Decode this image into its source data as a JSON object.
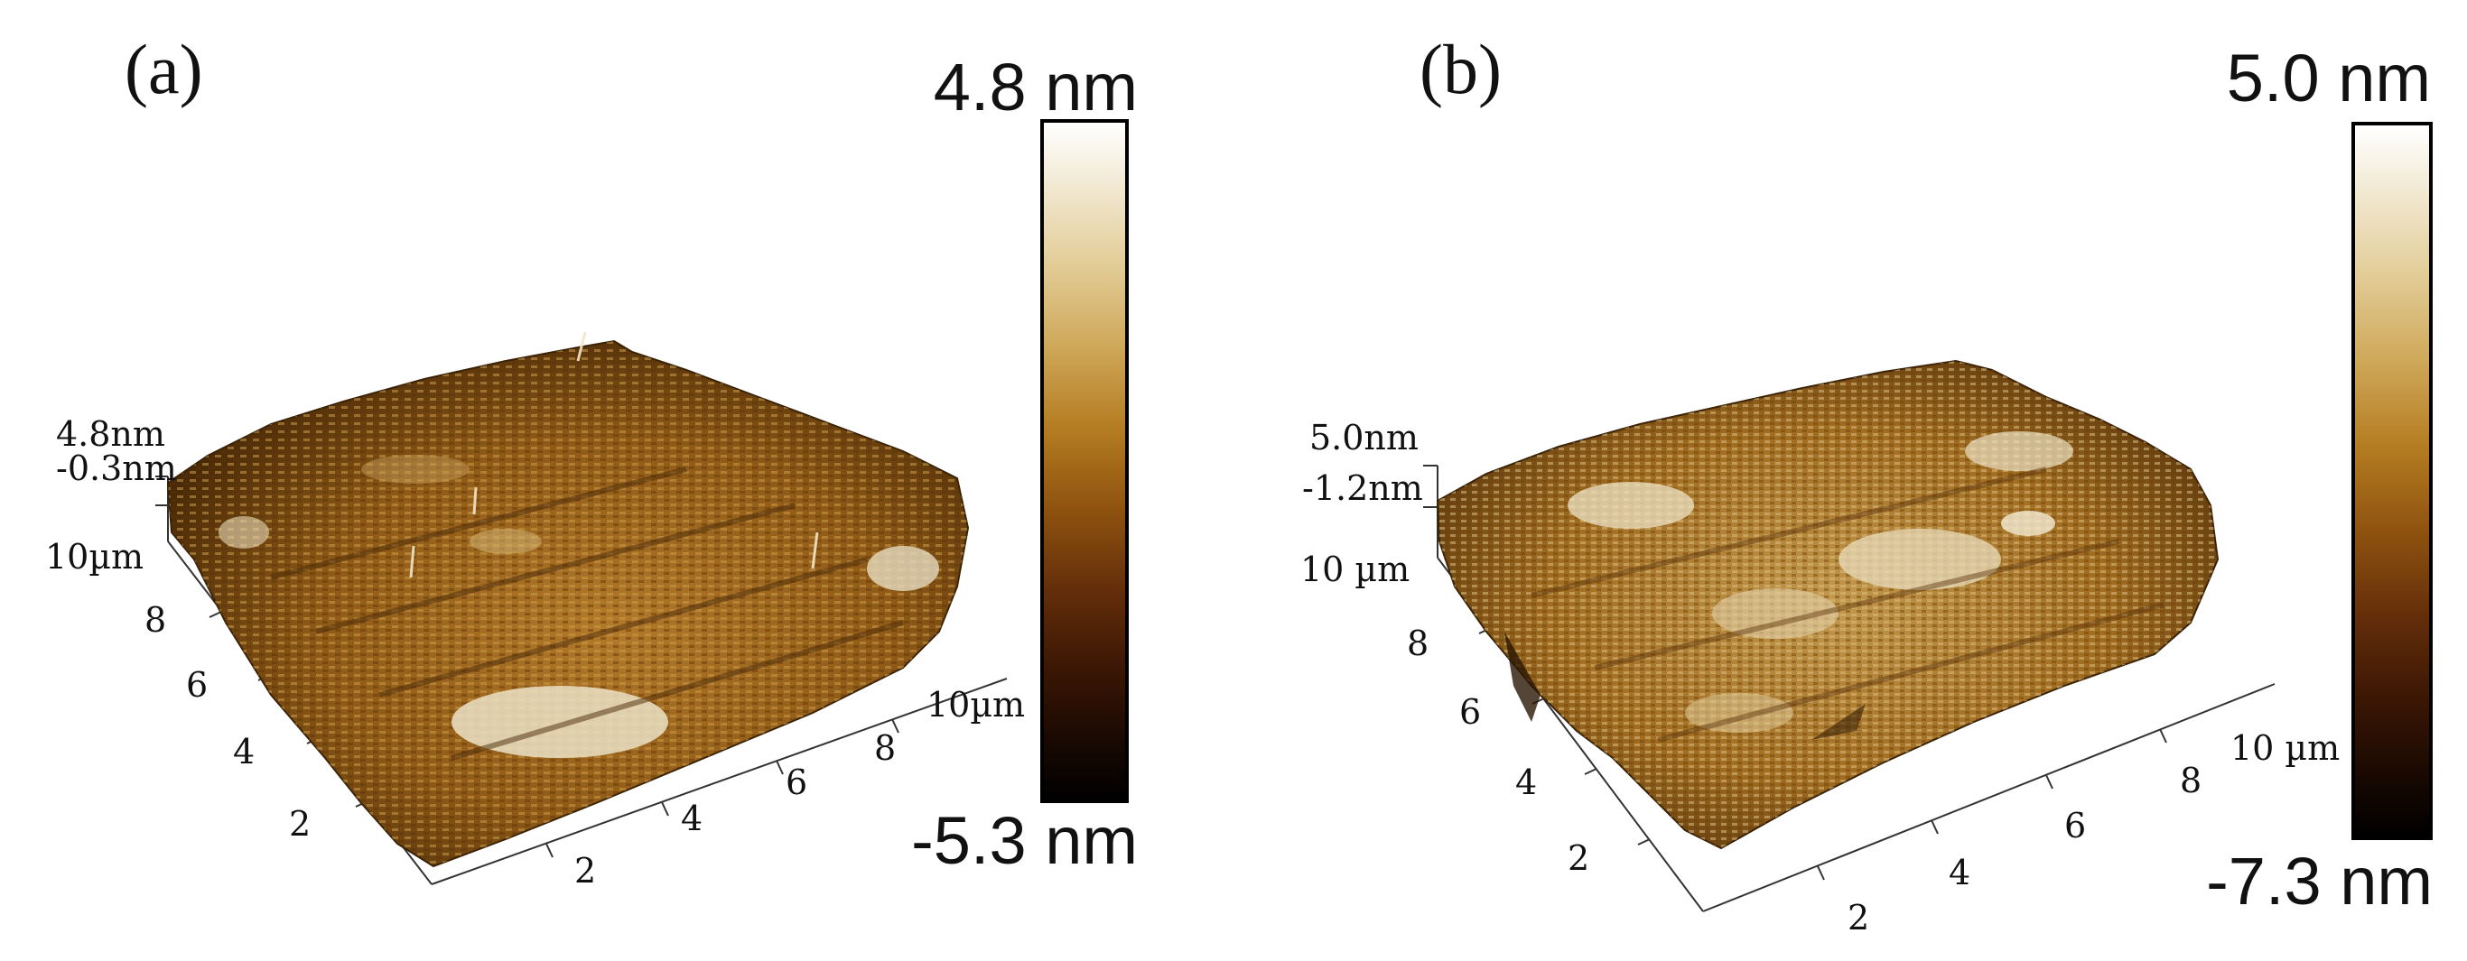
{
  "colors": {
    "surface_dark": "#3a2206",
    "surface_mid": "#a36a1a",
    "surface_light": "#f4ecd4",
    "colorbar_top": "#ffffff",
    "colorbar_bottom": "#000000"
  },
  "panels": [
    {
      "label": "(a)",
      "scale_max": "4.8 nm",
      "scale_min": "-5.3 nm",
      "z_top": "4.8nm",
      "z_mid": "-0.3nm",
      "left_axis": [
        "10µm",
        "8",
        "6",
        "4",
        "2"
      ],
      "bottom_axis": [
        "2",
        "4",
        "6",
        "8",
        "10µm"
      ]
    },
    {
      "label": "(b)",
      "scale_max": "5.0 nm",
      "scale_min": "-7.3 nm",
      "z_top": "5.0nm",
      "z_mid": "-1.2nm",
      "left_axis": [
        "10 µm",
        "8",
        "6",
        "4",
        "2"
      ],
      "bottom_axis": [
        "2",
        "4",
        "6",
        "8",
        "10 µm"
      ]
    }
  ]
}
